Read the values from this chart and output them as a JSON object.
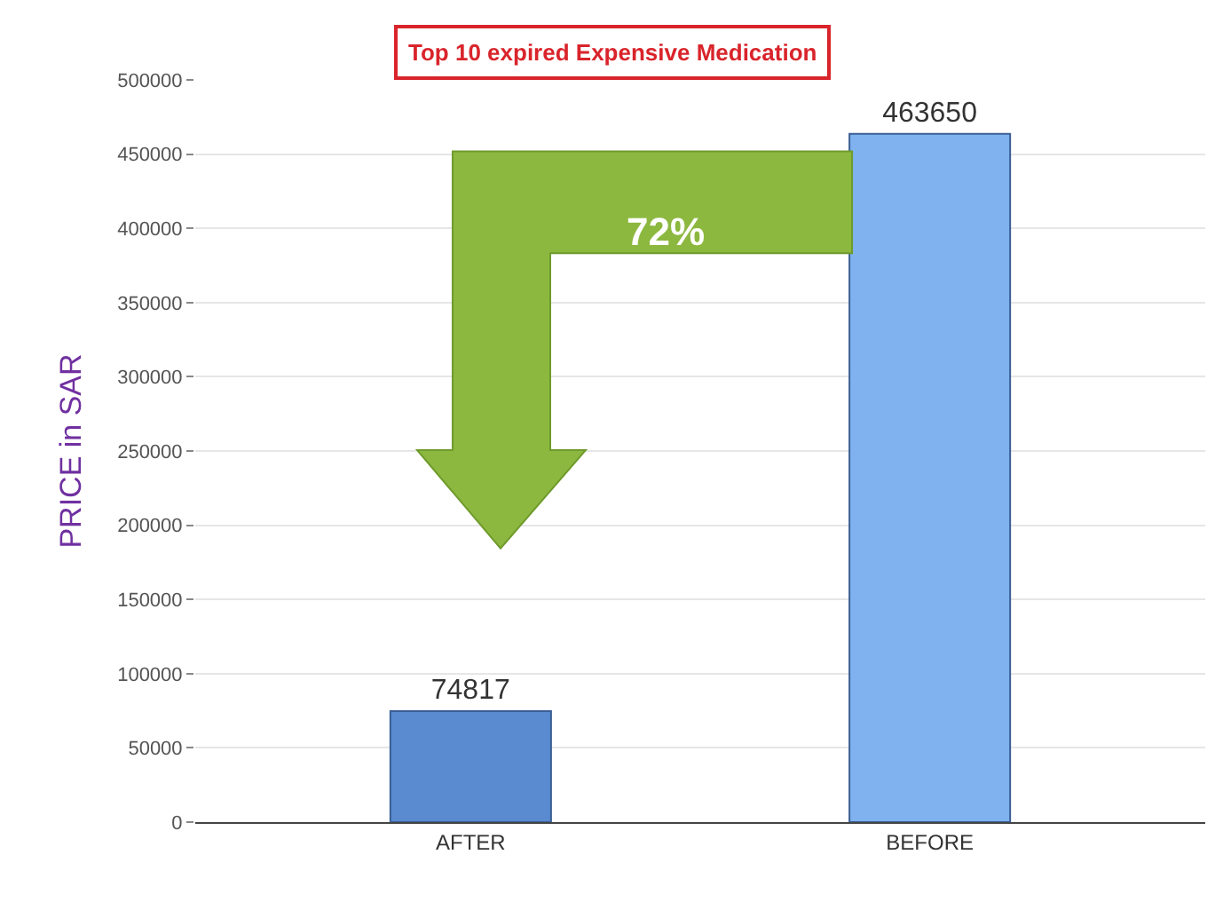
{
  "chart_data": {
    "type": "bar",
    "title": "Top 10 expired Expensive Medication",
    "ylabel": "PRICE in SAR",
    "categories": [
      "AFTER",
      "BEFORE"
    ],
    "values": [
      74817,
      463650
    ],
    "colors": [
      "#5a8ad0",
      "#7fb2ee"
    ],
    "data_labels": true,
    "ylim": [
      0,
      500000
    ],
    "yticks": [
      0,
      50000,
      100000,
      150000,
      200000,
      250000,
      300000,
      350000,
      400000,
      450000,
      500000
    ],
    "grid": "y",
    "annotations": [
      "72%"
    ]
  }
}
